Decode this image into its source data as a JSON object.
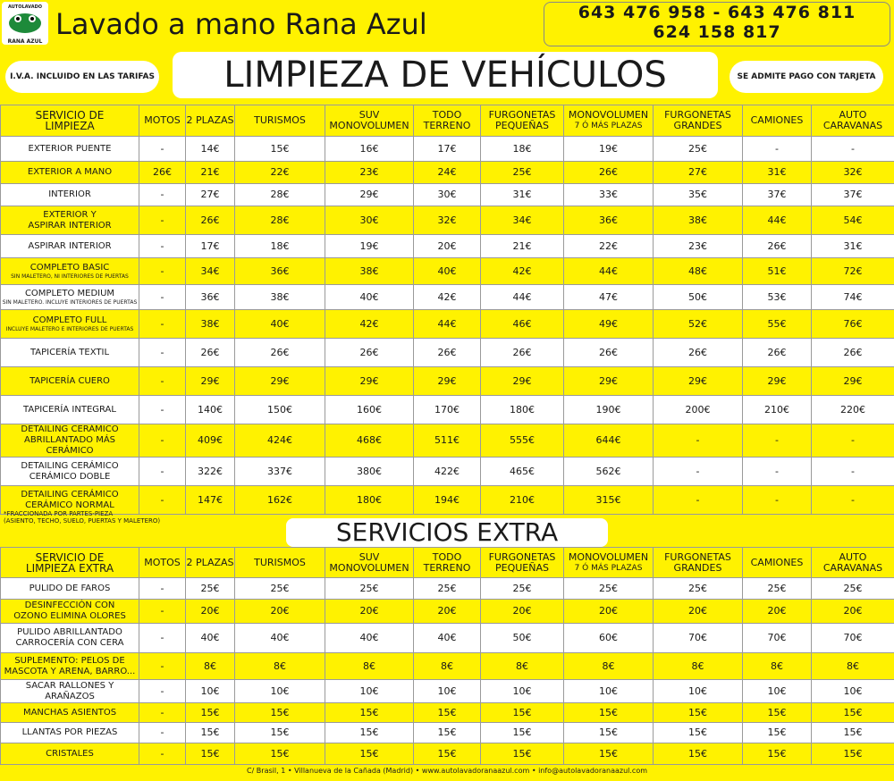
{
  "header": {
    "logo": [
      "AUTOLAVADO",
      "RANA AZUL"
    ],
    "title": "Lavado a mano Rana Azul",
    "phones": [
      "643 476 958 - 643 476 811",
      "624 158 817"
    ],
    "iva": "I.V.A. INCLUIDO EN LAS TARIFAS",
    "main_title": "LIMPIEZA DE VEHÍCULOS",
    "card": "SE ADMITE PAGO CON TARJETA"
  },
  "table1": {
    "header": [
      [
        "SERVICIO DE",
        "LIMPIEZA"
      ],
      [
        "MOTOS"
      ],
      [
        "2 PLAZAS"
      ],
      [
        "TURISMOS"
      ],
      [
        "SUV",
        "MONOVOLUMEN"
      ],
      [
        "TODO",
        "TERRENO"
      ],
      [
        "FURGONETAS",
        "PEQUEÑAS"
      ],
      [
        "MONOVOLUMEN",
        "7 Ó MÁS PLAZAS"
      ],
      [
        "FURGONETAS",
        "GRANDES"
      ],
      [
        "CAMIONES"
      ],
      [
        "AUTO",
        "CARAVANAS"
      ]
    ],
    "rows": [
      {
        "service": [
          "EXTERIOR PUENTE"
        ],
        "prices": [
          "-",
          "14€",
          "15€",
          "16€",
          "17€",
          "18€",
          "19€",
          "25€",
          "-",
          "-"
        ]
      },
      {
        "service": [
          "EXTERIOR A MANO"
        ],
        "prices": [
          "26€",
          "21€",
          "22€",
          "23€",
          "24€",
          "25€",
          "26€",
          "27€",
          "31€",
          "32€"
        ]
      },
      {
        "service": [
          "INTERIOR"
        ],
        "prices": [
          "-",
          "27€",
          "28€",
          "29€",
          "30€",
          "31€",
          "33€",
          "35€",
          "37€",
          "37€"
        ]
      },
      {
        "service": [
          "EXTERIOR Y",
          "ASPIRAR INTERIOR"
        ],
        "prices": [
          "-",
          "26€",
          "28€",
          "30€",
          "32€",
          "34€",
          "36€",
          "38€",
          "44€",
          "54€"
        ]
      },
      {
        "service": [
          "ASPIRAR INTERIOR"
        ],
        "prices": [
          "-",
          "17€",
          "18€",
          "19€",
          "20€",
          "21€",
          "22€",
          "23€",
          "26€",
          "31€"
        ]
      },
      {
        "service": [
          "COMPLETO BASIC"
        ],
        "note": "SIN MALETERO, NI INTERIORES DE PUERTAS",
        "prices": [
          "-",
          "34€",
          "36€",
          "38€",
          "40€",
          "42€",
          "44€",
          "48€",
          "51€",
          "72€"
        ]
      },
      {
        "service": [
          "COMPLETO MEDIUM"
        ],
        "note": "SIN MALETERO. INCLUYE INTERIORES DE PUERTAS",
        "prices": [
          "-",
          "36€",
          "38€",
          "40€",
          "42€",
          "44€",
          "47€",
          "50€",
          "53€",
          "74€"
        ]
      },
      {
        "service": [
          "COMPLETO FULL"
        ],
        "note": "INCLUYE MALETERO E INTERIORES DE PUERTAS",
        "prices": [
          "-",
          "38€",
          "40€",
          "42€",
          "44€",
          "46€",
          "49€",
          "52€",
          "55€",
          "76€"
        ]
      },
      {
        "service": [
          "TAPICERÍA TEXTIL"
        ],
        "prices": [
          "-",
          "26€",
          "26€",
          "26€",
          "26€",
          "26€",
          "26€",
          "26€",
          "26€",
          "26€"
        ]
      },
      {
        "service": [
          "TAPICERÍA CUERO"
        ],
        "prices": [
          "-",
          "29€",
          "29€",
          "29€",
          "29€",
          "29€",
          "29€",
          "29€",
          "29€",
          "29€"
        ]
      },
      {
        "service": [
          "TAPICERÍA INTEGRAL"
        ],
        "prices": [
          "-",
          "140€",
          "150€",
          "160€",
          "170€",
          "180€",
          "190€",
          "200€",
          "210€",
          "220€"
        ]
      },
      {
        "service": [
          "DETAILING CERÁMICO",
          "ABRILLANTADO MÁS CERÁMICO"
        ],
        "prices": [
          "-",
          "409€",
          "424€",
          "468€",
          "511€",
          "555€",
          "644€",
          "-",
          "-",
          "-"
        ]
      },
      {
        "service": [
          "DETAILING CERÁMICO",
          "CERÁMICO DOBLE"
        ],
        "prices": [
          "-",
          "322€",
          "337€",
          "380€",
          "422€",
          "465€",
          "562€",
          "-",
          "-",
          "-"
        ]
      },
      {
        "service": [
          "DETAILING CERÁMICO",
          "CERÁMICO NORMAL"
        ],
        "prices": [
          "-",
          "147€",
          "162€",
          "180€",
          "194€",
          "210€",
          "315€",
          "-",
          "-",
          "-"
        ]
      }
    ]
  },
  "note": [
    "*FRACCIONADA POR PARTES-PIEZA",
    "(ASIENTO, TECHO, SUELO, PUERTAS Y MALETERO)"
  ],
  "extra_title": "SERVICIOS EXTRA",
  "table2": {
    "header": [
      [
        "SERVICIO DE",
        "LIMPIEZA EXTRA"
      ],
      [
        "MOTOS"
      ],
      [
        "2 PLAZAS"
      ],
      [
        "TURISMOS"
      ],
      [
        "SUV",
        "MONOVOLUMEN"
      ],
      [
        "TODO",
        "TERRENO"
      ],
      [
        "FURGONETAS",
        "PEQUEÑAS"
      ],
      [
        "MONOVOLUMEN",
        "7 Ó MÁS PLAZAS"
      ],
      [
        "FURGONETAS",
        "GRANDES"
      ],
      [
        "CAMIONES"
      ],
      [
        "AUTO",
        "CARAVANAS"
      ]
    ],
    "rows": [
      {
        "service": [
          "PULIDO DE FAROS"
        ],
        "prices": [
          "-",
          "25€",
          "25€",
          "25€",
          "25€",
          "25€",
          "25€",
          "25€",
          "25€",
          "25€"
        ]
      },
      {
        "service": [
          "DESINFECCIÓN CON",
          "OZONO ELIMINA OLORES"
        ],
        "prices": [
          "-",
          "20€",
          "20€",
          "20€",
          "20€",
          "20€",
          "20€",
          "20€",
          "20€",
          "20€"
        ]
      },
      {
        "service": [
          "PULIDO ABRILLANTADO",
          "CARROCERÍA CON CERA"
        ],
        "prices": [
          "-",
          "40€",
          "40€",
          "40€",
          "40€",
          "50€",
          "60€",
          "70€",
          "70€",
          "70€"
        ]
      },
      {
        "service": [
          "SUPLEMENTO: PELOS DE",
          "MASCOTA Y ARENA, BARRO..."
        ],
        "prices": [
          "-",
          "8€",
          "8€",
          "8€",
          "8€",
          "8€",
          "8€",
          "8€",
          "8€",
          "8€"
        ]
      },
      {
        "service": [
          "SACAR RALLONES Y ARAÑAZOS"
        ],
        "prices": [
          "-",
          "10€",
          "10€",
          "10€",
          "10€",
          "10€",
          "10€",
          "10€",
          "10€",
          "10€"
        ]
      },
      {
        "service": [
          "MANCHAS ASIENTOS"
        ],
        "prices": [
          "-",
          "15€",
          "15€",
          "15€",
          "15€",
          "15€",
          "15€",
          "15€",
          "15€",
          "15€"
        ]
      },
      {
        "service": [
          "LLANTAS POR PIEZAS"
        ],
        "prices": [
          "-",
          "15€",
          "15€",
          "15€",
          "15€",
          "15€",
          "15€",
          "15€",
          "15€",
          "15€"
        ]
      },
      {
        "service": [
          "CRISTALES"
        ],
        "prices": [
          "-",
          "15€",
          "15€",
          "15€",
          "15€",
          "15€",
          "15€",
          "15€",
          "15€",
          "15€"
        ]
      }
    ]
  },
  "footer": "C/ Brasil, 1 • Villanueva de la Cañada (Madrid) • www.autolavadoranaazul.com • info@autolavadoranaazul.com"
}
